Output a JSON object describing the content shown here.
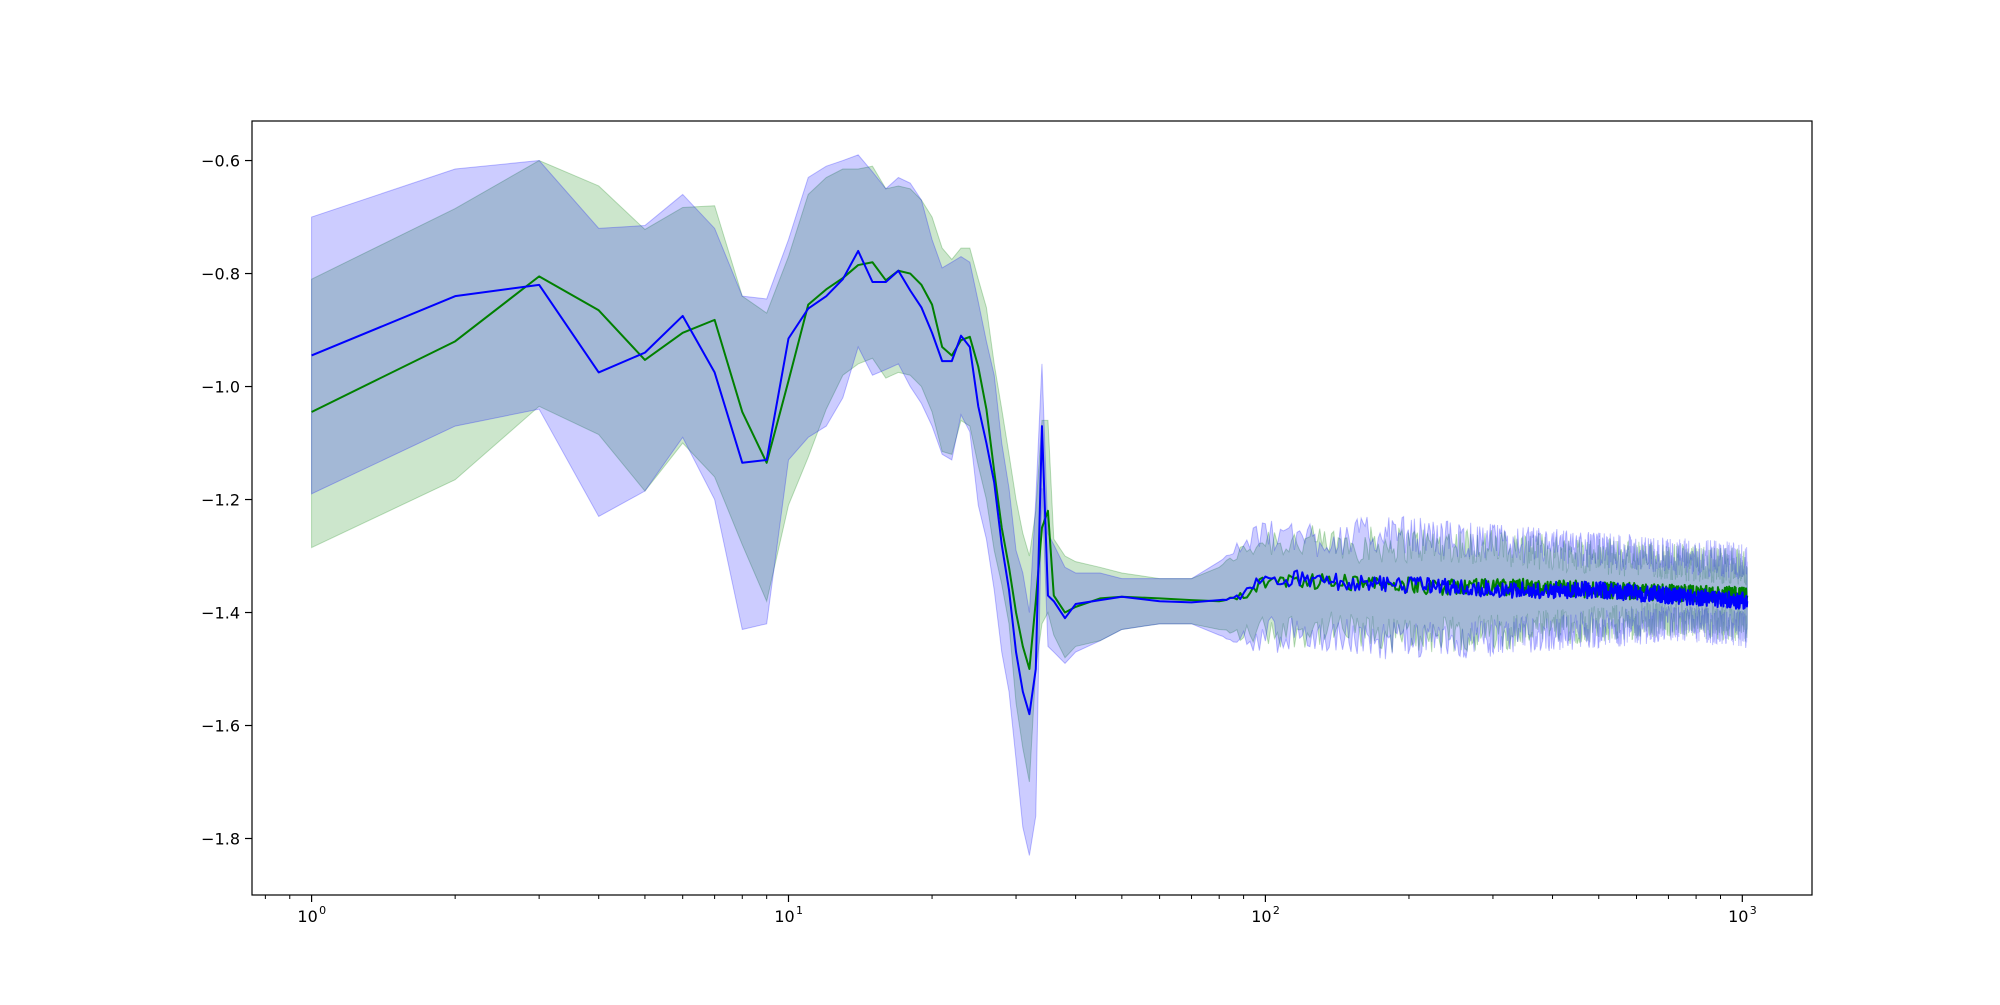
{
  "chart_data": {
    "type": "line",
    "title": "",
    "xlabel": "",
    "ylabel": "",
    "xscale": "log",
    "xlim": [
      0.75,
      1400
    ],
    "ylim": [
      -1.9,
      -0.53
    ],
    "grid": false,
    "legend": "none",
    "x_ticks": [
      {
        "value": 1,
        "base": "10",
        "exp": "0"
      },
      {
        "value": 10,
        "base": "10",
        "exp": "1"
      },
      {
        "value": 100,
        "base": "10",
        "exp": "2"
      },
      {
        "value": 1000,
        "base": "10",
        "exp": "3"
      }
    ],
    "y_ticks": [
      {
        "value": -0.6,
        "label": "−0.6"
      },
      {
        "value": -0.8,
        "label": "−0.8"
      },
      {
        "value": -1.0,
        "label": "−1.0"
      },
      {
        "value": -1.2,
        "label": "−1.2"
      },
      {
        "value": -1.4,
        "label": "−1.4"
      },
      {
        "value": -1.6,
        "label": "−1.6"
      },
      {
        "value": -1.8,
        "label": "−1.8"
      }
    ],
    "series": [
      {
        "color": "#008000",
        "band_color": "#008000",
        "band_opacity": 0.2,
        "points": [
          [
            1,
            -1.045,
            -0.81,
            -1.285
          ],
          [
            2,
            -0.92,
            -0.685,
            -1.165
          ],
          [
            3,
            -0.805,
            -0.6,
            -1.035
          ],
          [
            4,
            -0.865,
            -0.645,
            -1.085
          ],
          [
            5,
            -0.953,
            -0.722,
            -1.185
          ],
          [
            6,
            -0.905,
            -0.683,
            -1.1
          ],
          [
            7,
            -0.882,
            -0.68,
            -1.16
          ],
          [
            8,
            -1.045,
            -0.84,
            -1.28
          ],
          [
            9,
            -1.135,
            -0.87,
            -1.38
          ],
          [
            10,
            -0.99,
            -0.77,
            -1.21
          ],
          [
            11,
            -0.855,
            -0.66,
            -1.125
          ],
          [
            12,
            -0.828,
            -0.63,
            -1.04
          ],
          [
            13,
            -0.808,
            -0.615,
            -0.98
          ],
          [
            14,
            -0.785,
            -0.615,
            -0.96
          ],
          [
            15,
            -0.78,
            -0.61,
            -0.95
          ],
          [
            16,
            -0.812,
            -0.65,
            -0.985
          ],
          [
            17,
            -0.795,
            -0.645,
            -0.975
          ],
          [
            18,
            -0.8,
            -0.65,
            -0.98
          ],
          [
            19,
            -0.82,
            -0.67,
            -1.0
          ],
          [
            20,
            -0.855,
            -0.7,
            -1.045
          ],
          [
            21,
            -0.93,
            -0.755,
            -1.115
          ],
          [
            22,
            -0.945,
            -0.775,
            -1.12
          ],
          [
            23,
            -0.918,
            -0.755,
            -1.06
          ],
          [
            24,
            -0.912,
            -0.755,
            -1.07
          ],
          [
            25,
            -0.965,
            -0.81,
            -1.14
          ],
          [
            26,
            -1.04,
            -0.86,
            -1.2
          ],
          [
            27,
            -1.15,
            -0.96,
            -1.29
          ],
          [
            28,
            -1.25,
            -1.04,
            -1.35
          ],
          [
            29,
            -1.32,
            -1.12,
            -1.42
          ],
          [
            30,
            -1.4,
            -1.2,
            -1.56
          ],
          [
            31,
            -1.46,
            -1.26,
            -1.64
          ],
          [
            32,
            -1.5,
            -1.3,
            -1.7
          ],
          [
            33,
            -1.38,
            -1.22,
            -1.5
          ],
          [
            34,
            -1.25,
            -1.06,
            -1.42
          ],
          [
            35,
            -1.22,
            -1.06,
            -1.4
          ],
          [
            36,
            -1.37,
            -1.27,
            -1.44
          ],
          [
            38,
            -1.4,
            -1.3,
            -1.48
          ],
          [
            40,
            -1.39,
            -1.31,
            -1.46
          ],
          [
            45,
            -1.375,
            -1.32,
            -1.45
          ],
          [
            50,
            -1.372,
            -1.33,
            -1.43
          ],
          [
            60,
            -1.375,
            -1.34,
            -1.42
          ],
          [
            70,
            -1.378,
            -1.34,
            -1.42
          ],
          [
            80,
            -1.38,
            -1.32,
            -1.43
          ],
          [
            90,
            -1.37,
            -1.29,
            -1.44
          ],
          [
            100,
            -1.345,
            -1.27,
            -1.43
          ],
          [
            130,
            -1.345,
            -1.28,
            -1.43
          ],
          [
            180,
            -1.35,
            -1.28,
            -1.44
          ],
          [
            250,
            -1.355,
            -1.28,
            -1.44
          ],
          [
            350,
            -1.355,
            -1.29,
            -1.43
          ],
          [
            500,
            -1.36,
            -1.3,
            -1.42
          ],
          [
            700,
            -1.365,
            -1.31,
            -1.41
          ],
          [
            1024,
            -1.37,
            -1.32,
            -1.42
          ]
        ]
      },
      {
        "color": "#0000ff",
        "band_color": "#0000ff",
        "band_opacity": 0.2,
        "points": [
          [
            1,
            -0.945,
            -0.7,
            -1.19
          ],
          [
            2,
            -0.84,
            -0.615,
            -1.07
          ],
          [
            3,
            -0.82,
            -0.6,
            -1.04
          ],
          [
            4,
            -0.975,
            -0.72,
            -1.23
          ],
          [
            5,
            -0.94,
            -0.715,
            -1.185
          ],
          [
            6,
            -0.875,
            -0.66,
            -1.09
          ],
          [
            7,
            -0.975,
            -0.72,
            -1.2
          ],
          [
            8,
            -1.135,
            -0.84,
            -1.43
          ],
          [
            9,
            -1.13,
            -0.845,
            -1.42
          ],
          [
            10,
            -0.915,
            -0.74,
            -1.13
          ],
          [
            11,
            -0.862,
            -0.63,
            -1.09
          ],
          [
            12,
            -0.84,
            -0.61,
            -1.07
          ],
          [
            13,
            -0.81,
            -0.6,
            -1.02
          ],
          [
            14,
            -0.76,
            -0.59,
            -0.93
          ],
          [
            15,
            -0.815,
            -0.62,
            -0.98
          ],
          [
            16,
            -0.815,
            -0.65,
            -0.97
          ],
          [
            17,
            -0.795,
            -0.63,
            -0.96
          ],
          [
            18,
            -0.83,
            -0.64,
            -1.0
          ],
          [
            19,
            -0.86,
            -0.67,
            -1.03
          ],
          [
            20,
            -0.905,
            -0.74,
            -1.07
          ],
          [
            21,
            -0.955,
            -0.79,
            -1.12
          ],
          [
            22,
            -0.955,
            -0.78,
            -1.13
          ],
          [
            23,
            -0.91,
            -0.77,
            -1.05
          ],
          [
            24,
            -0.93,
            -0.78,
            -1.08
          ],
          [
            25,
            -1.035,
            -0.85,
            -1.21
          ],
          [
            26,
            -1.1,
            -0.92,
            -1.27
          ],
          [
            27,
            -1.17,
            -0.98,
            -1.36
          ],
          [
            28,
            -1.28,
            -1.1,
            -1.47
          ],
          [
            29,
            -1.36,
            -1.18,
            -1.54
          ],
          [
            30,
            -1.47,
            -1.29,
            -1.66
          ],
          [
            31,
            -1.54,
            -1.33,
            -1.78
          ],
          [
            32,
            -1.58,
            -1.4,
            -1.83
          ],
          [
            33,
            -1.5,
            -1.2,
            -1.76
          ],
          [
            34,
            -1.07,
            -0.96,
            -1.18
          ],
          [
            35,
            -1.37,
            -1.26,
            -1.46
          ],
          [
            36,
            -1.38,
            -1.28,
            -1.47
          ],
          [
            38,
            -1.41,
            -1.32,
            -1.49
          ],
          [
            40,
            -1.385,
            -1.33,
            -1.47
          ],
          [
            45,
            -1.378,
            -1.33,
            -1.45
          ],
          [
            50,
            -1.372,
            -1.34,
            -1.43
          ],
          [
            60,
            -1.38,
            -1.34,
            -1.42
          ],
          [
            70,
            -1.382,
            -1.34,
            -1.42
          ],
          [
            80,
            -1.378,
            -1.31,
            -1.44
          ],
          [
            90,
            -1.37,
            -1.28,
            -1.45
          ],
          [
            100,
            -1.335,
            -1.26,
            -1.44
          ],
          [
            130,
            -1.345,
            -1.27,
            -1.44
          ],
          [
            180,
            -1.35,
            -1.26,
            -1.45
          ],
          [
            250,
            -1.355,
            -1.27,
            -1.45
          ],
          [
            350,
            -1.36,
            -1.28,
            -1.44
          ],
          [
            500,
            -1.36,
            -1.29,
            -1.43
          ],
          [
            700,
            -1.37,
            -1.3,
            -1.42
          ],
          [
            1024,
            -1.38,
            -1.31,
            -1.43
          ]
        ]
      }
    ]
  }
}
